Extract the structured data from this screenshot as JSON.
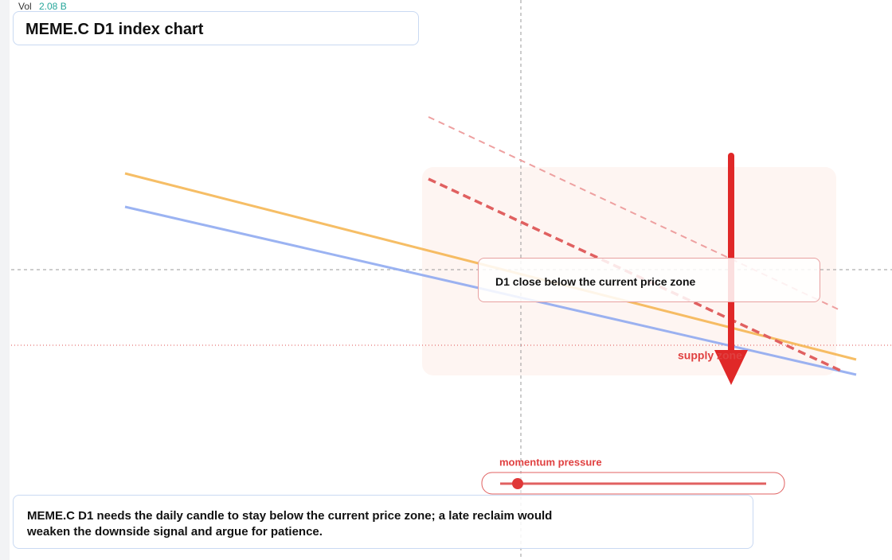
{
  "header": {
    "volume_label": "Vol",
    "volume_value": "2.08 B",
    "title": "MEME.C D1 index chart"
  },
  "annotations": {
    "callout": "D1 close below the current price zone",
    "zone_label": "supply zone",
    "momentum_label": "momentum pressure"
  },
  "footer": {
    "note": "MEME.C D1 needs the daily candle to stay below the current price zone; a late reclaim would weaken the downside signal and argue for patience."
  }
}
